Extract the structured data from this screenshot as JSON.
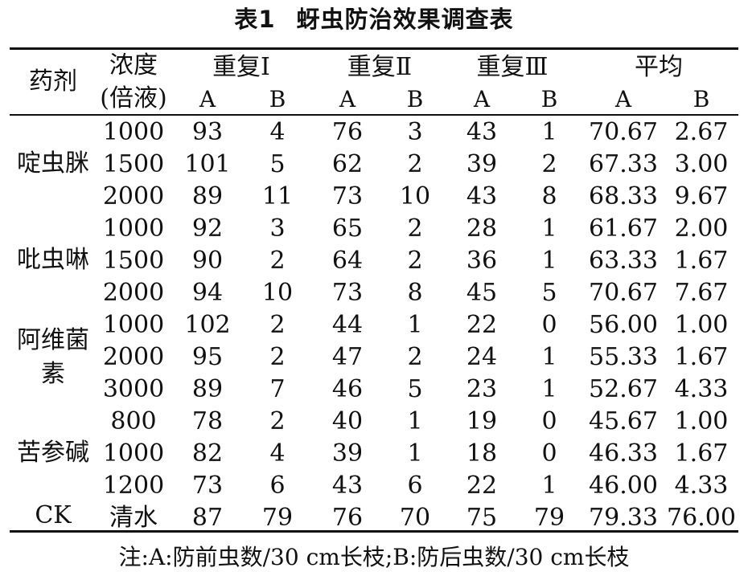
{
  "table": {
    "caption_number": "表1",
    "caption_title": "蚜虫防治效果调查表",
    "header": {
      "agent": "药剂",
      "conc_top": "浓度",
      "conc_bottom": "(倍液)",
      "groups": [
        "重复Ⅰ",
        "重复Ⅱ",
        "重复Ⅲ",
        "平均"
      ],
      "sub": [
        "A",
        "B",
        "A",
        "B",
        "A",
        "B",
        "A",
        "B"
      ]
    },
    "groups": [
      {
        "agent": "啶虫脒",
        "rows": [
          [
            "1000",
            "93",
            "4",
            "76",
            "3",
            "43",
            "1",
            "70.67",
            "2.67"
          ],
          [
            "1500",
            "101",
            "5",
            "62",
            "2",
            "39",
            "2",
            "67.33",
            "3.00"
          ],
          [
            "2000",
            "89",
            "11",
            "73",
            "10",
            "43",
            "8",
            "68.33",
            "9.67"
          ]
        ]
      },
      {
        "agent": "吡虫啉",
        "rows": [
          [
            "1000",
            "92",
            "3",
            "65",
            "2",
            "28",
            "1",
            "61.67",
            "2.00"
          ],
          [
            "1500",
            "90",
            "2",
            "64",
            "2",
            "36",
            "1",
            "63.33",
            "1.67"
          ],
          [
            "2000",
            "94",
            "10",
            "73",
            "8",
            "45",
            "5",
            "70.67",
            "7.67"
          ]
        ]
      },
      {
        "agent_line1": "阿维菌",
        "agent_line2": "素",
        "rows": [
          [
            "1000",
            "102",
            "2",
            "44",
            "1",
            "22",
            "0",
            "56.00",
            "1.00"
          ],
          [
            "2000",
            "95",
            "2",
            "47",
            "2",
            "24",
            "1",
            "55.33",
            "1.67"
          ],
          [
            "3000",
            "89",
            "7",
            "46",
            "5",
            "23",
            "1",
            "52.67",
            "4.33"
          ]
        ]
      },
      {
        "agent": "苦参碱",
        "rows": [
          [
            "800",
            "78",
            "2",
            "40",
            "1",
            "19",
            "0",
            "45.67",
            "1.00"
          ],
          [
            "1000",
            "82",
            "4",
            "39",
            "1",
            "18",
            "0",
            "46.33",
            "1.67"
          ],
          [
            "1200",
            "73",
            "6",
            "43",
            "6",
            "22",
            "1",
            "46.00",
            "4.33"
          ]
        ]
      },
      {
        "agent": "CK",
        "rows": [
          [
            "清水",
            "87",
            "79",
            "76",
            "70",
            "75",
            "79",
            "79.33",
            "76.00"
          ]
        ]
      }
    ],
    "note": "注:A:防前虫数/30 cm长枝;B:防后虫数/30 cm长枝"
  }
}
